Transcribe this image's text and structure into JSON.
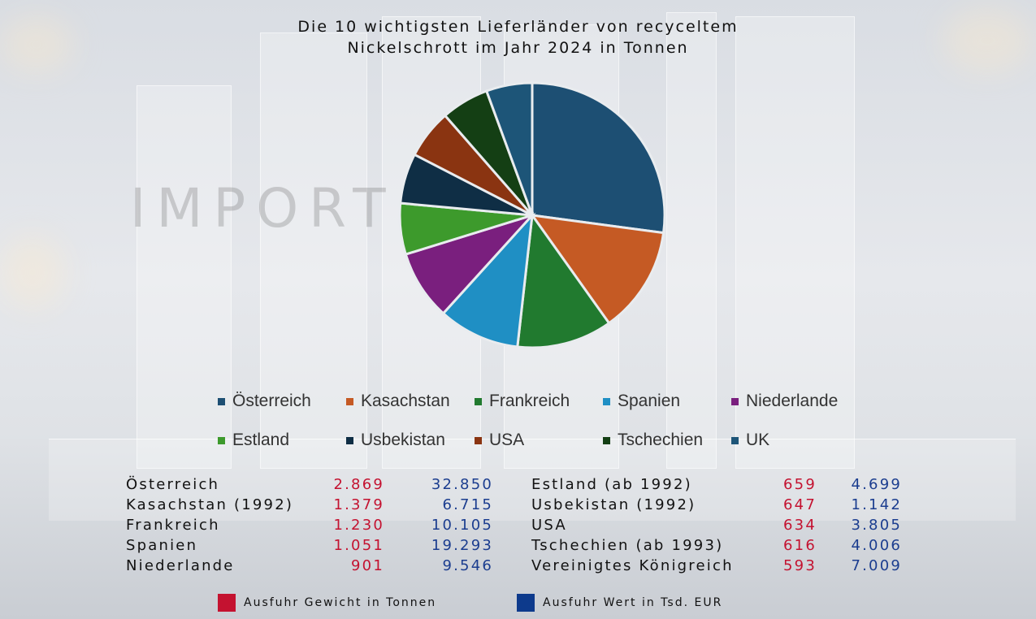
{
  "watermark": "IMPORT",
  "chart_data": {
    "type": "pie",
    "title": "Die 10 wichtigsten Lieferländer von recyceltem Nickelschrott im Jahr 2024 in Tonnen",
    "title_lines": [
      "Die 10 wichtigsten Lieferländer von recyceltem",
      "Nickelschrott im Jahr 2024 in Tonnen"
    ],
    "categories": [
      "Österreich",
      "Kasachstan",
      "Frankreich",
      "Spanien",
      "Niederlande",
      "Estland",
      "Usbekistan",
      "USA",
      "Tschechien",
      "UK"
    ],
    "values": [
      2869,
      1379,
      1230,
      1051,
      901,
      659,
      647,
      634,
      616,
      593
    ],
    "colors": [
      "#1d4f73",
      "#c55a24",
      "#217a2f",
      "#1f8fc4",
      "#7a1f7e",
      "#3d9a2c",
      "#0f2e45",
      "#8a3411",
      "#143f14",
      "#1d5578"
    ],
    "legend": "bottom"
  },
  "table": {
    "rows": [
      {
        "name": "Österreich",
        "weight": "2.869",
        "value": "32.850"
      },
      {
        "name": "Kasachstan (1992)",
        "weight": "1.379",
        "value": "6.715"
      },
      {
        "name": "Frankreich",
        "weight": "1.230",
        "value": "10.105"
      },
      {
        "name": "Spanien",
        "weight": "1.051",
        "value": "19.293"
      },
      {
        "name": "Niederlande",
        "weight": "901",
        "value": "9.546"
      },
      {
        "name": "Estland (ab 1992)",
        "weight": "659",
        "value": "4.699"
      },
      {
        "name": "Usbekistan (1992)",
        "weight": "647",
        "value": "1.142"
      },
      {
        "name": "USA",
        "weight": "634",
        "value": "3.805"
      },
      {
        "name": "Tschechien (ab 1993)",
        "weight": "616",
        "value": "4.006"
      },
      {
        "name": "Vereinigtes Königreich",
        "weight": "593",
        "value": "7.009"
      }
    ]
  },
  "key": {
    "weight_label": "Ausfuhr Gewicht in Tonnen",
    "weight_color": "#c41230",
    "value_label": "Ausfuhr Wert in Tsd. EUR",
    "value_color": "#0d3a8c"
  }
}
